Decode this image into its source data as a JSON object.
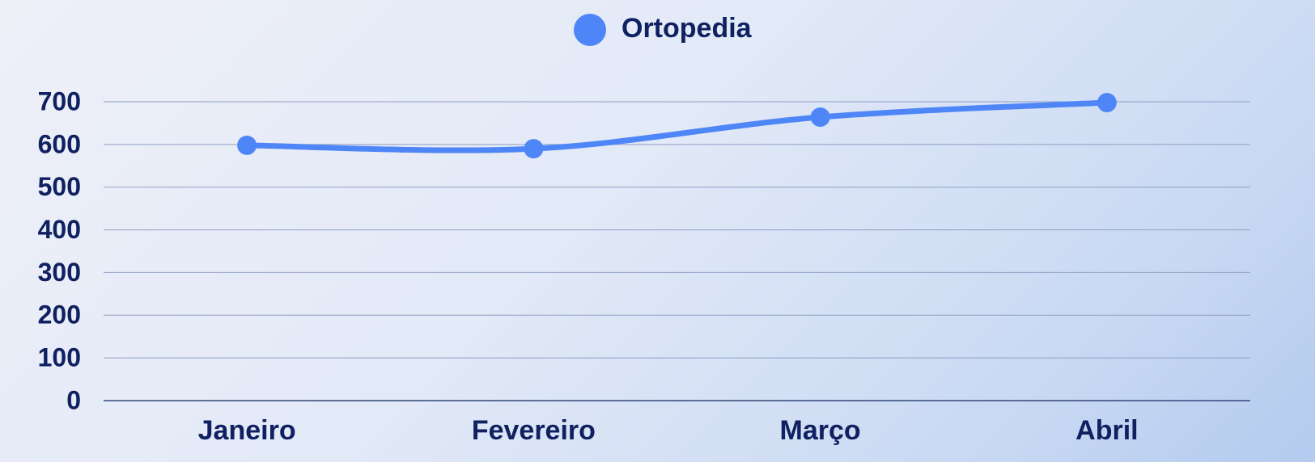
{
  "chart_data": {
    "type": "line",
    "categories": [
      "Janeiro",
      "Fevereiro",
      "Março",
      "Abril"
    ],
    "series": [
      {
        "name": "Ortopedia",
        "color": "#4f86f7",
        "values": [
          598,
          590,
          664,
          698
        ]
      }
    ],
    "ylim": [
      0,
      700
    ],
    "yticks": [
      0,
      100,
      200,
      300,
      400,
      500,
      600,
      700
    ],
    "grid": true
  }
}
